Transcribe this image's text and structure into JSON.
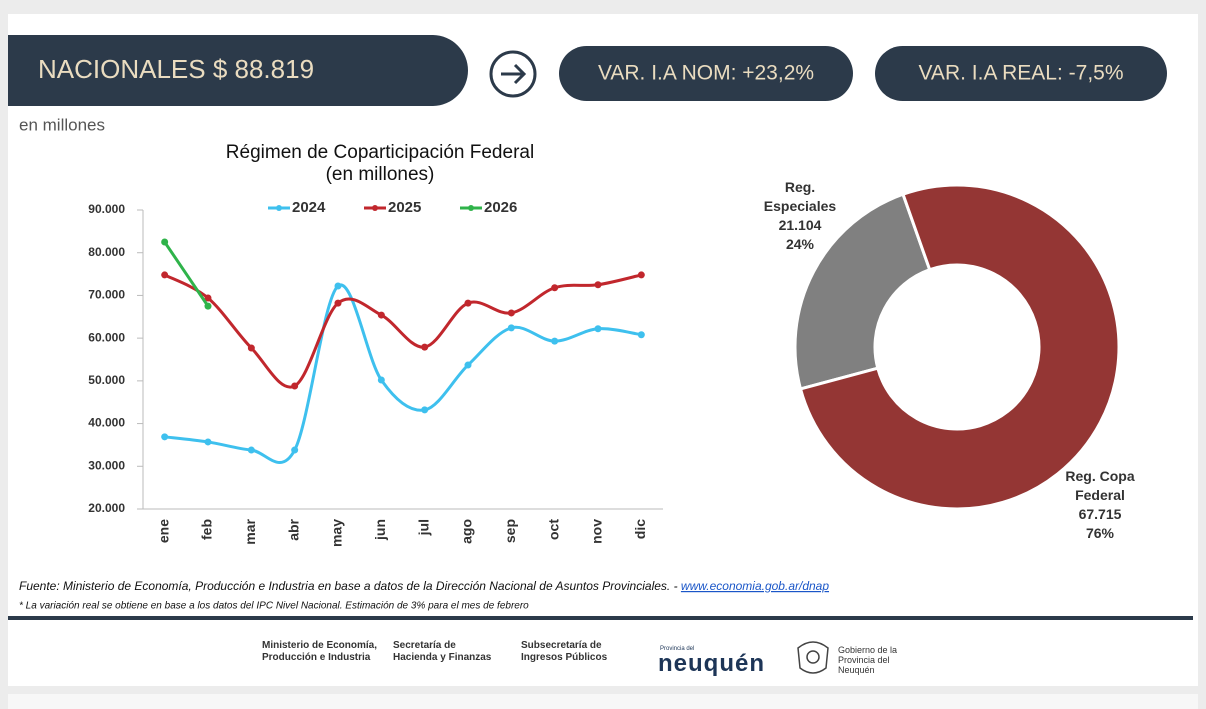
{
  "header": {
    "title": "NACIONALES $ 88.819",
    "badges": [
      "VAR. I.A NOM: +23,2%",
      "VAR. I.A REAL: -7,5%"
    ]
  },
  "unit_note": "en millones",
  "chart_data": [
    {
      "type": "line",
      "title": "Régimen de Coparticipación Federal",
      "subtitle": "(en millones)",
      "categories": [
        "ene",
        "feb",
        "mar",
        "abr",
        "may",
        "jun",
        "jul",
        "ago",
        "sep",
        "oct",
        "nov",
        "dic"
      ],
      "series": [
        {
          "name": "2024",
          "color": "#3ec0ee",
          "values": [
            36900,
            35700,
            33800,
            33800,
            72200,
            50200,
            43200,
            53700,
            62400,
            59300,
            62200,
            60800
          ]
        },
        {
          "name": "2025",
          "color": "#c1272d",
          "values": [
            74800,
            69400,
            57700,
            48800,
            68200,
            65400,
            57900,
            68200,
            65900,
            71800,
            72500,
            74800
          ]
        },
        {
          "name": "2026",
          "color": "#2fb34a",
          "values": [
            82500,
            67500,
            null,
            null,
            null,
            null,
            null,
            null,
            null,
            null,
            null,
            null
          ]
        }
      ],
      "ylim": [
        20000,
        90000
      ],
      "yticks": [
        {
          "value": 20000,
          "label": "20.000"
        },
        {
          "value": 30000,
          "label": "30.000"
        },
        {
          "value": 40000,
          "label": "40.000"
        },
        {
          "value": 50000,
          "label": "50.000"
        },
        {
          "value": 60000,
          "label": "60.000"
        },
        {
          "value": 70000,
          "label": "70.000"
        },
        {
          "value": 80000,
          "label": "80.000"
        },
        {
          "value": 90000,
          "label": "90.000"
        }
      ],
      "grid": false,
      "legend": "top"
    },
    {
      "type": "donut",
      "categories": [
        "Reg. Especiales",
        "Reg. Copa Federal"
      ],
      "values": [
        21104,
        67715
      ],
      "value_labels": [
        "21.104",
        "67.715"
      ],
      "percent_labels": [
        "24%",
        "76%"
      ],
      "colors": [
        "#808080",
        "#943634"
      ]
    }
  ],
  "source": {
    "text": "Fuente: Ministerio de Economía, Producción e Industria en base a datos de la Dirección Nacional de Asuntos Provinciales. - ",
    "link": "www.economia.gob.ar/dnap"
  },
  "note": "* La variación real se obtiene en base a los datos del IPC Nivel Nacional. Estimación de 3% para el mes de febrero",
  "footer": {
    "logos": [
      "Ministerio de Economía, Producción e Industria",
      "Secretaría de Hacienda y Finanzas",
      "Subsecretaría de Ingresos Públicos"
    ],
    "province_small": "Provincia del",
    "province": "neuquén",
    "government": "Gobierno de la Provincia del Neuquén"
  }
}
